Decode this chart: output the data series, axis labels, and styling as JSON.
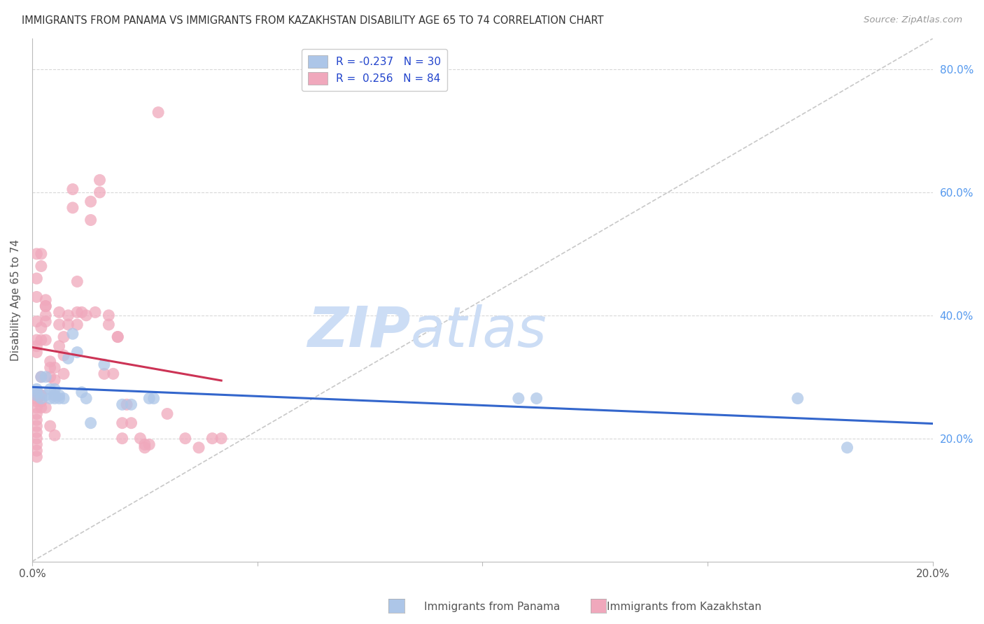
{
  "title": "IMMIGRANTS FROM PANAMA VS IMMIGRANTS FROM KAZAKHSTAN DISABILITY AGE 65 TO 74 CORRELATION CHART",
  "source": "Source: ZipAtlas.com",
  "ylabel": "Disability Age 65 to 74",
  "legend_blue_r": "R = -0.237",
  "legend_blue_n": "N = 30",
  "legend_pink_r": "R =  0.256",
  "legend_pink_n": "N = 84",
  "panama_color": "#adc6e8",
  "kazakhstan_color": "#f0a8bc",
  "regression_blue_color": "#3366cc",
  "regression_pink_color": "#cc3355",
  "diagonal_color": "#c8c8c8",
  "grid_color": "#d8d8d8",
  "background_color": "#ffffff",
  "watermark_color": "#ccddf5",
  "xlim": [
    0.0,
    0.2
  ],
  "ylim": [
    0.0,
    0.85
  ],
  "xticks": [
    0.0,
    0.05,
    0.1,
    0.15,
    0.2
  ],
  "yticks": [
    0.2,
    0.4,
    0.6,
    0.8
  ],
  "panama_x": [
    0.001,
    0.001,
    0.001,
    0.002,
    0.002,
    0.003,
    0.003,
    0.004,
    0.004,
    0.005,
    0.005,
    0.005,
    0.006,
    0.006,
    0.007,
    0.008,
    0.009,
    0.01,
    0.011,
    0.012,
    0.013,
    0.016,
    0.02,
    0.022,
    0.026,
    0.027,
    0.108,
    0.112,
    0.17,
    0.181
  ],
  "panama_y": [
    0.275,
    0.28,
    0.27,
    0.265,
    0.3,
    0.27,
    0.3,
    0.265,
    0.28,
    0.27,
    0.265,
    0.28,
    0.27,
    0.265,
    0.265,
    0.33,
    0.37,
    0.34,
    0.275,
    0.265,
    0.225,
    0.32,
    0.255,
    0.255,
    0.265,
    0.265,
    0.265,
    0.265,
    0.265,
    0.185
  ],
  "kazakhstan_x": [
    0.001,
    0.001,
    0.001,
    0.001,
    0.001,
    0.001,
    0.001,
    0.001,
    0.001,
    0.001,
    0.001,
    0.001,
    0.001,
    0.001,
    0.001,
    0.001,
    0.001,
    0.001,
    0.001,
    0.001,
    0.001,
    0.002,
    0.002,
    0.002,
    0.002,
    0.002,
    0.002,
    0.002,
    0.002,
    0.002,
    0.003,
    0.003,
    0.003,
    0.003,
    0.003,
    0.003,
    0.003,
    0.004,
    0.004,
    0.004,
    0.004,
    0.005,
    0.005,
    0.005,
    0.006,
    0.006,
    0.006,
    0.007,
    0.007,
    0.007,
    0.008,
    0.008,
    0.009,
    0.009,
    0.01,
    0.01,
    0.01,
    0.011,
    0.012,
    0.013,
    0.013,
    0.014,
    0.015,
    0.015,
    0.016,
    0.017,
    0.017,
    0.018,
    0.019,
    0.019,
    0.02,
    0.02,
    0.021,
    0.022,
    0.024,
    0.025,
    0.025,
    0.026,
    0.028,
    0.03,
    0.034,
    0.037,
    0.04,
    0.042
  ],
  "kazakhstan_y": [
    0.27,
    0.26,
    0.25,
    0.24,
    0.23,
    0.22,
    0.21,
    0.2,
    0.19,
    0.18,
    0.17,
    0.27,
    0.265,
    0.36,
    0.35,
    0.34,
    0.46,
    0.43,
    0.39,
    0.5,
    0.27,
    0.27,
    0.25,
    0.3,
    0.36,
    0.38,
    0.5,
    0.48,
    0.27,
    0.26,
    0.25,
    0.36,
    0.39,
    0.4,
    0.415,
    0.415,
    0.425,
    0.3,
    0.315,
    0.325,
    0.22,
    0.295,
    0.315,
    0.205,
    0.405,
    0.385,
    0.35,
    0.365,
    0.335,
    0.305,
    0.385,
    0.4,
    0.605,
    0.575,
    0.405,
    0.385,
    0.455,
    0.405,
    0.4,
    0.555,
    0.585,
    0.405,
    0.6,
    0.62,
    0.305,
    0.4,
    0.385,
    0.305,
    0.365,
    0.365,
    0.225,
    0.2,
    0.255,
    0.225,
    0.2,
    0.19,
    0.185,
    0.19,
    0.73,
    0.24,
    0.2,
    0.185,
    0.2,
    0.2
  ]
}
